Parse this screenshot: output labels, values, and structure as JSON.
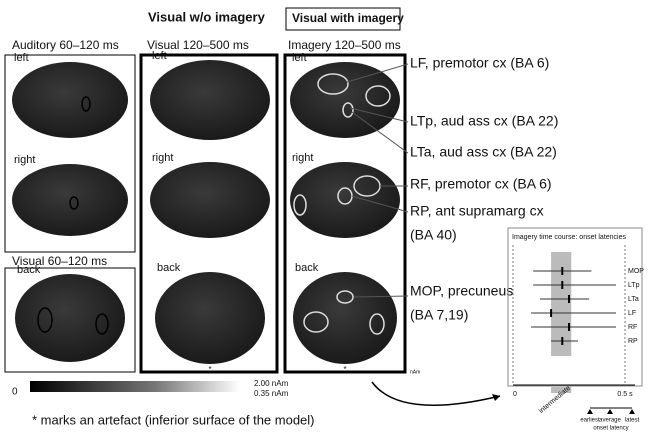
{
  "header": {
    "title_left": "Visual w/o imagery",
    "title_boxed": "Visual with imagery"
  },
  "columns": {
    "auditory": "Auditory 60–120 ms",
    "visual": "Visual 120–500 ms",
    "imagery": "Imagery 120–500 ms",
    "visual_early": "Visual 60–120 ms"
  },
  "views": {
    "left": "left",
    "right": "right",
    "back": "back"
  },
  "artefact_mark": "*",
  "annotations": {
    "lf": "LF, premotor cx (BA 6)",
    "ltp": "LTp, aud ass cx (BA 22)",
    "lta": "LTa, aud ass cx (BA 22)",
    "rf": "RF, premotor cx (BA 6)",
    "rp": [
      "RP, ant supramarg cx",
      "(BA 40)"
    ],
    "mop": [
      "MOP, precuneus",
      "(BA 7,19)"
    ]
  },
  "colorbar": {
    "min": "0",
    "max": "2.00 nAm",
    "threshold": "0.35 nAm",
    "unit": "nAm"
  },
  "footer": "* marks an artefact (inferior surface of the model)",
  "chart_data": {
    "type": "interval",
    "title": "Imagery time course: onset latencies",
    "categories": [
      "MOP",
      "LTp",
      "LTa",
      "LF",
      "RF",
      "RP"
    ],
    "earliest": [
      0.09,
      0.09,
      0.12,
      0.08,
      0.08,
      0.17
    ],
    "average": [
      0.22,
      0.22,
      0.25,
      0.17,
      0.25,
      0.22
    ],
    "latest": [
      0.35,
      0.46,
      0.34,
      0.46,
      0.46,
      0.29
    ],
    "intermediate": [
      0.17,
      0.26
    ],
    "intermediate_label": "intermediate",
    "legend": [
      "earliest",
      "average",
      "latest"
    ],
    "legend_title": "onset latency",
    "xlim": [
      0,
      0.5
    ],
    "xticks": [
      {
        "value": 0,
        "label": "0"
      },
      {
        "value": 0.5,
        "label": "0.5 s"
      }
    ]
  }
}
